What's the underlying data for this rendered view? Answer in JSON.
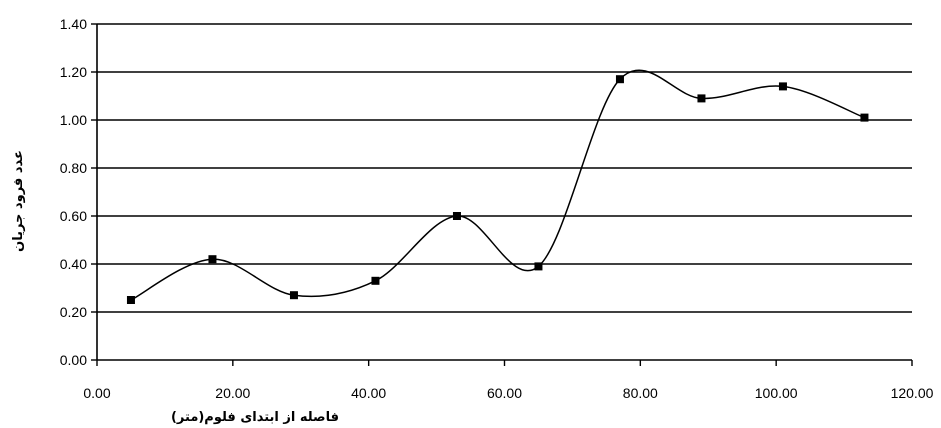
{
  "chart_data": {
    "type": "line",
    "title": "",
    "xlabel": "فاصله از ابتدای فلوم(متر)",
    "ylabel": "عدد فرود جریان",
    "xlim": [
      0,
      120
    ],
    "ylim": [
      0,
      1.4
    ],
    "x_ticks": [
      "0.00",
      "20.00",
      "40.00",
      "60.00",
      "80.00",
      "100.00",
      "120.00"
    ],
    "y_ticks": [
      "0.00",
      "0.20",
      "0.40",
      "0.60",
      "0.80",
      "1.00",
      "1.20",
      "1.40"
    ],
    "x_tick_values": [
      0,
      20,
      40,
      60,
      80,
      100,
      120
    ],
    "y_tick_values": [
      0,
      0.2,
      0.4,
      0.6,
      0.8,
      1.0,
      1.2,
      1.4
    ],
    "grid": "horizontal",
    "line_style": "smoothed",
    "marker": "square",
    "colors": {
      "line": "#000000",
      "marker": "#000000",
      "grid": "#000000"
    },
    "series": [
      {
        "x": [
          5,
          17,
          29,
          41,
          53,
          65,
          77,
          89,
          101,
          113
        ],
        "y": [
          0.25,
          0.42,
          0.27,
          0.33,
          0.6,
          0.39,
          1.17,
          1.09,
          1.14,
          1.01
        ]
      }
    ]
  }
}
